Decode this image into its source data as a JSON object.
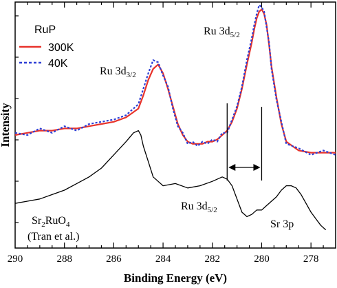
{
  "chart_data": {
    "type": "line",
    "xlabel": "Binding Energy (eV)",
    "ylabel": "Intensity",
    "xlim": [
      290,
      277
    ],
    "x_reversed": true,
    "ylim": [
      0,
      100
    ],
    "y_ticks_labeled": false,
    "x_ticks": [
      290,
      288,
      286,
      284,
      282,
      280,
      278
    ],
    "legend": {
      "title": "RuP",
      "placement": "top-left",
      "entries": [
        {
          "label": "300K",
          "color": "#e8332b",
          "style": "solid"
        },
        {
          "label": "40K",
          "color": "#2d3fd6",
          "style": "dotted"
        }
      ]
    },
    "series": [
      {
        "name": "300K",
        "color": "#e8332b",
        "style": "solid",
        "x": [
          290.0,
          289.5,
          289.0,
          288.5,
          288.0,
          287.5,
          287.0,
          286.5,
          286.0,
          285.5,
          285.0,
          284.8,
          284.6,
          284.4,
          284.2,
          284.0,
          283.8,
          283.6,
          283.4,
          283.2,
          283.0,
          282.8,
          282.6,
          282.4,
          282.2,
          282.0,
          281.8,
          281.6,
          281.4,
          281.2,
          281.0,
          280.8,
          280.6,
          280.4,
          280.3,
          280.2,
          280.1,
          280.0,
          279.9,
          279.8,
          279.7,
          279.6,
          279.4,
          279.2,
          279.0,
          278.5,
          278.0,
          277.5,
          277.0
        ],
        "y": [
          45,
          46,
          47,
          47,
          48,
          48,
          49,
          50,
          51,
          53,
          57,
          63,
          70,
          75,
          77,
          73,
          66,
          58,
          50,
          45,
          42,
          41,
          41,
          41,
          42,
          42,
          43,
          45,
          47,
          51,
          57,
          66,
          77,
          87,
          93,
          98,
          101,
          102,
          100,
          95,
          86,
          76,
          62,
          50,
          42,
          38,
          37,
          37,
          37
        ]
      },
      {
        "name": "40K",
        "color": "#2d3fd6",
        "style": "dotted",
        "x": [
          290.0,
          289.5,
          289.0,
          288.5,
          288.0,
          287.5,
          287.0,
          286.5,
          286.0,
          285.5,
          285.0,
          284.8,
          284.6,
          284.4,
          284.2,
          284.0,
          283.8,
          283.6,
          283.4,
          283.2,
          283.0,
          282.8,
          282.6,
          282.4,
          282.2,
          282.0,
          281.8,
          281.6,
          281.4,
          281.2,
          281.0,
          280.8,
          280.6,
          280.4,
          280.3,
          280.2,
          280.1,
          280.0,
          279.9,
          279.8,
          279.7,
          279.6,
          279.4,
          279.2,
          279.0,
          278.5,
          278.0,
          277.5,
          277.0
        ],
        "y": [
          46,
          45,
          48,
          46,
          49,
          47,
          50,
          51,
          52,
          54,
          59,
          66,
          73,
          79,
          78,
          72,
          67,
          57,
          49,
          46,
          41,
          42,
          40,
          42,
          41,
          43,
          42,
          46,
          46,
          52,
          58,
          67,
          79,
          89,
          95,
          100,
          104,
          103,
          101,
          94,
          87,
          75,
          61,
          51,
          41,
          39,
          36,
          38,
          36
        ]
      },
      {
        "name": "Sr2RuO4 (Tran et al.)",
        "color": "#000000",
        "style": "solid",
        "x": [
          290.0,
          289.5,
          289.0,
          288.5,
          288.0,
          287.5,
          287.0,
          286.5,
          286.0,
          285.5,
          285.2,
          285.0,
          284.9,
          284.8,
          284.6,
          284.4,
          284.2,
          284.0,
          283.5,
          283.0,
          282.5,
          282.0,
          281.6,
          281.4,
          281.2,
          281.0,
          280.8,
          280.6,
          280.4,
          280.2,
          280.0,
          279.8,
          279.6,
          279.4,
          279.2,
          279.0,
          278.8,
          278.6,
          278.4,
          278.2,
          278.0,
          277.8,
          277.6,
          277.4
        ],
        "y": [
          14,
          15,
          16,
          18,
          20,
          23,
          26,
          30,
          36,
          42,
          46,
          47,
          45,
          40,
          33,
          26,
          24,
          22,
          23,
          21,
          22,
          24,
          26,
          25,
          22,
          16,
          10,
          8,
          9,
          11,
          11,
          13,
          15,
          17,
          20,
          22,
          22,
          21,
          18,
          14,
          10,
          7,
          4,
          2
        ]
      }
    ],
    "annotations": [
      {
        "text": "Ru 3d",
        "sub": "3/2",
        "near_x": 284.2
      },
      {
        "text": "Ru 3d",
        "sub": "5/2",
        "near_x": 280.0
      },
      {
        "text": "Ru 3d",
        "sub": "5/2",
        "near_x": 281.3
      },
      {
        "text": "Sr 3p",
        "near_x": 278.9
      },
      {
        "text": "Sr",
        "sub1": "2",
        "mid": "RuO",
        "sub2": "4",
        "line2": "(Tran et al.)"
      }
    ],
    "marker_lines_x": [
      281.4,
      280.0
    ]
  }
}
